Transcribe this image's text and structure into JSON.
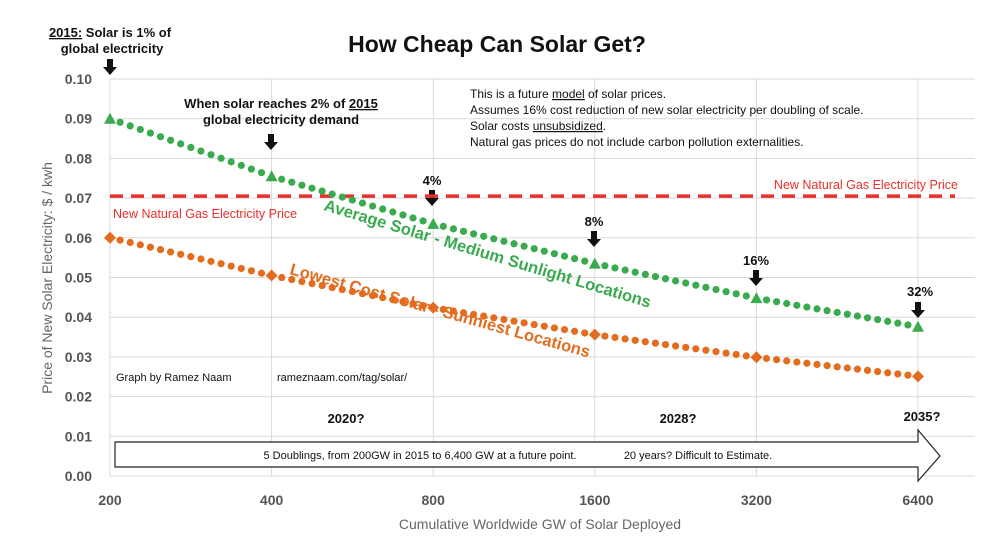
{
  "chart_data": {
    "type": "line",
    "title": "How Cheap Can Solar Get?",
    "xlabel": "Cumulative Worldwide GW of Solar Deployed",
    "ylabel": "Price of New Solar Electricity: $ / kwh",
    "x_scale": "log2",
    "x": [
      200,
      400,
      800,
      1600,
      3200,
      6400
    ],
    "x_tick_labels": [
      "200",
      "400",
      "800",
      "1600",
      "3200",
      "6400"
    ],
    "ylim": [
      0,
      0.1
    ],
    "y_tick_labels": [
      "0.00",
      "0.01",
      "0.02",
      "0.03",
      "0.04",
      "0.05",
      "0.06",
      "0.07",
      "0.08",
      "0.09",
      "0.10"
    ],
    "grid": true,
    "series": [
      {
        "name": "Average Solar - Medium Sunlight Locations",
        "color": "#3aaa4f",
        "marker": "triangle",
        "values": [
          0.09,
          0.0755,
          0.0635,
          0.0535,
          0.0448,
          0.0376
        ]
      },
      {
        "name": "Lowest Cost Solar - Sunniest Locations",
        "color": "#e46c1f",
        "marker": "diamond",
        "values": [
          0.06,
          0.0505,
          0.0424,
          0.0356,
          0.0299,
          0.0251
        ]
      },
      {
        "name": "New Natural Gas Electricity Price",
        "color": "#e8302c",
        "style": "dashed",
        "value": 0.0705
      }
    ],
    "gas_labels": [
      "New Natural Gas Electricity Price",
      "New Natural Gas Electricity Price"
    ],
    "annotations": {
      "start_underlined": "2015:",
      "start_rest": " Solar is 1% of",
      "start_line2": "global electricity",
      "two_pct_line1": "When solar reaches 2% of ",
      "two_pct_underlined": "2015",
      "two_pct_line2": "global electricity demand",
      "pct_labels": [
        "4%",
        "8%",
        "16%",
        "32%"
      ],
      "notes": {
        "line1_a": "This is a future ",
        "line1_u": "model",
        "line1_b": " of solar prices.",
        "line2": "Assumes 16% cost reduction of new solar electricity per doubling of scale.",
        "line3_a": "Solar costs ",
        "line3_u": "unsubsidized",
        "line3_b": ".",
        "line4": "Natural gas prices do not include carbon pollution externalities."
      },
      "credit": "Graph by Ramez Naam",
      "url": "rameznaam.com/tag/solar/",
      "years": [
        "2020?",
        "2028?",
        "2035?"
      ],
      "arrow_text_1": "5 Doublings, from 200GW in 2015 to 6,400 GW at a future point.",
      "arrow_text_2": "20 years? Difficult to Estimate."
    }
  }
}
